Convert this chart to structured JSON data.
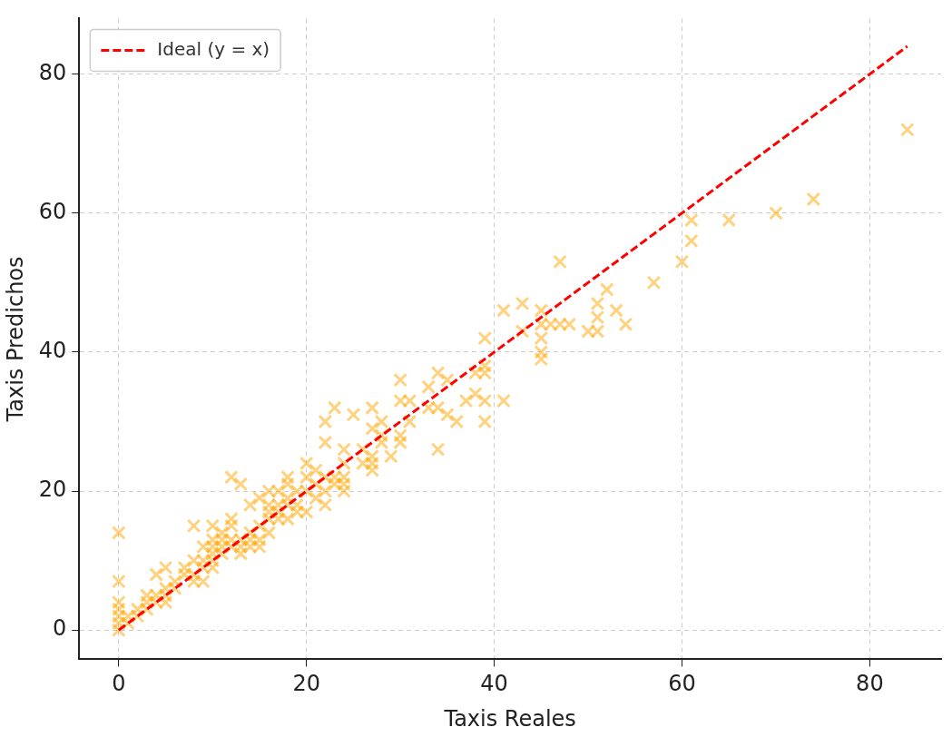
{
  "chart_data": {
    "type": "scatter",
    "xlabel": "Taxis Reales",
    "ylabel": "Taxis Predichos",
    "xlim": [
      -4.2,
      87.6
    ],
    "ylim": [
      -4.2,
      88
    ],
    "xticks": [
      0,
      20,
      40,
      60,
      80
    ],
    "yticks": [
      0,
      20,
      40,
      60,
      80
    ],
    "grid": true,
    "legend": "top left",
    "marker": "cross",
    "series": [
      {
        "color": "#ffa500",
        "x": [
          0,
          0,
          0,
          0,
          0,
          0,
          0,
          1,
          1,
          2,
          2,
          3,
          3,
          3,
          4,
          4,
          4,
          5,
          5,
          5,
          5,
          6,
          6,
          7,
          7,
          8,
          8,
          8,
          8,
          9,
          9,
          9,
          9,
          10,
          10,
          10,
          10,
          10,
          10,
          11,
          11,
          11,
          11,
          12,
          12,
          12,
          12,
          12,
          13,
          13,
          13,
          13,
          14,
          14,
          14,
          14,
          15,
          15,
          15,
          15,
          16,
          16,
          16,
          16,
          16,
          17,
          17,
          17,
          17,
          18,
          18,
          18,
          18,
          18,
          19,
          19,
          19,
          20,
          20,
          20,
          20,
          21,
          21,
          21,
          22,
          22,
          22,
          22,
          22,
          23,
          23,
          23,
          24,
          24,
          24,
          24,
          24,
          25,
          26,
          26,
          27,
          27,
          27,
          27,
          27,
          28,
          28,
          28,
          29,
          30,
          30,
          30,
          30,
          31,
          31,
          33,
          33,
          34,
          34,
          34,
          35,
          35,
          36,
          37,
          38,
          38,
          39,
          39,
          39,
          39,
          39,
          41,
          41,
          43,
          43,
          45,
          45,
          45,
          45,
          45,
          46,
          47,
          47,
          48,
          50,
          51,
          51,
          51,
          52,
          53,
          54,
          57,
          60,
          61,
          61,
          65,
          70,
          74,
          84
        ],
        "values": [
          0,
          1,
          2,
          3,
          4,
          7,
          14,
          1,
          2,
          2,
          3,
          3,
          4,
          5,
          4,
          5,
          8,
          5,
          6,
          9,
          4,
          6,
          7,
          8,
          9,
          8,
          10,
          15,
          7,
          9,
          10,
          7,
          12,
          10,
          11,
          12,
          13,
          15,
          9,
          11,
          12,
          13,
          14,
          12,
          13,
          15,
          16,
          22,
          13,
          12,
          11,
          21,
          12,
          13,
          14,
          18,
          15,
          13,
          12,
          19,
          16,
          17,
          18,
          20,
          14,
          17,
          18,
          16,
          20,
          18,
          19,
          21,
          22,
          16,
          20,
          18,
          17,
          20,
          22,
          24,
          17,
          21,
          19,
          23,
          22,
          27,
          30,
          18,
          20,
          32,
          21,
          22,
          24,
          26,
          20,
          22,
          21,
          31,
          24,
          26,
          23,
          24,
          25,
          32,
          29,
          27,
          30,
          28,
          25,
          36,
          33,
          27,
          28,
          30,
          33,
          35,
          32,
          37,
          26,
          32,
          31,
          36,
          30,
          33,
          34,
          37,
          42,
          38,
          37,
          33,
          30,
          46,
          33,
          47,
          43,
          46,
          44,
          42,
          39,
          40,
          44,
          53,
          44,
          44,
          43,
          47,
          45,
          43,
          49,
          46,
          44,
          50,
          53,
          59,
          56,
          59,
          60,
          62,
          72
        ]
      },
      {
        "type": "line",
        "name": "Ideal (y = x)",
        "color": "#ff0000",
        "line_style": "dashed",
        "marker": "none",
        "x": [
          0,
          84
        ],
        "values": [
          0,
          84
        ]
      }
    ]
  }
}
